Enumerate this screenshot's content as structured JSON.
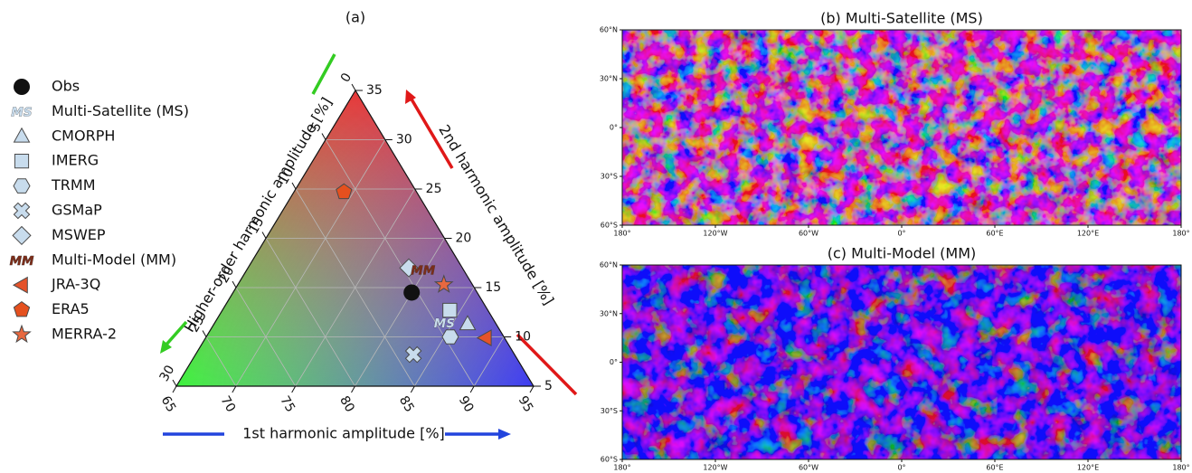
{
  "chart_data": [
    {
      "type": "ternary",
      "title": "(a)",
      "first_label": "1st harmonic amplitude [%]",
      "second_label": "2nd harmonic amplitude [%]",
      "higher_label": "Higher-order harmonic amplitude [%]",
      "first_lim": [
        65,
        95
      ],
      "second_lim": [
        5,
        35
      ],
      "higher_lim": [
        0,
        30
      ],
      "first_ticks": [
        65,
        70,
        75,
        80,
        85,
        90,
        95
      ],
      "second_ticks": [
        5,
        10,
        15,
        20,
        25,
        30,
        35
      ],
      "higher_ticks": [
        0,
        5,
        10,
        15,
        20,
        25,
        30
      ],
      "grid": true,
      "series": [
        {
          "name": "Obs",
          "marker": "o",
          "color": "#111111",
          "first": 80.0,
          "second": 14.5,
          "higher": 5.5
        },
        {
          "name": "Multi-Satellite (MS)",
          "marker": "MS",
          "color": "#c8dced",
          "first": 84.3,
          "second": 11.4,
          "higher": 4.3
        },
        {
          "name": "CMORPH",
          "marker": "^",
          "color": "#c8dced",
          "first": 86.3,
          "second": 11.3,
          "higher": 2.4
        },
        {
          "name": "IMERG",
          "marker": "s",
          "color": "#c8dced",
          "first": 84.1,
          "second": 12.7,
          "higher": 3.2
        },
        {
          "name": "TRMM",
          "marker": "h",
          "color": "#c8dced",
          "first": 85.5,
          "second": 10.0,
          "higher": 4.5
        },
        {
          "name": "GSMaP",
          "marker": "X",
          "color": "#c8dced",
          "first": 83.3,
          "second": 8.2,
          "higher": 8.5
        },
        {
          "name": "MSWEP",
          "marker": "D",
          "color": "#c8dced",
          "first": 78.5,
          "second": 17.0,
          "higher": 4.5
        },
        {
          "name": "Multi-Model (MM)",
          "marker": "MM",
          "color": "#7b2d1a",
          "first": 79.8,
          "second": 16.8,
          "higher": 3.4
        },
        {
          "name": "JRA-3Q",
          "marker": "<",
          "color": "#e5532a",
          "first": 88.5,
          "second": 9.9,
          "higher": 1.6
        },
        {
          "name": "ERA5",
          "marker": "p",
          "color": "#e5501e",
          "first": 69.2,
          "second": 24.7,
          "higher": 6.1
        },
        {
          "name": "MERRA-2",
          "marker": "*",
          "color": "#e8683f",
          "first": 82.3,
          "second": 15.3,
          "higher": 2.4
        }
      ]
    },
    {
      "type": "map",
      "title": "(b) Multi-Satellite (MS)",
      "xlim": [
        -180,
        180
      ],
      "ylim": [
        -60,
        60
      ],
      "xticks": [
        {
          "value": -180,
          "label": "180°"
        },
        {
          "value": -120,
          "label": "120°W"
        },
        {
          "value": -60,
          "label": "60°W"
        },
        {
          "value": 0,
          "label": "0°"
        },
        {
          "value": 60,
          "label": "60°E"
        },
        {
          "value": 120,
          "label": "120°E"
        },
        {
          "value": 180,
          "label": "180°"
        }
      ],
      "yticks": [
        {
          "value": 60,
          "label": "60°N"
        },
        {
          "value": 30,
          "label": "30°N"
        },
        {
          "value": 0,
          "label": "0°"
        },
        {
          "value": -30,
          "label": "30°S"
        },
        {
          "value": -60,
          "label": "60°S"
        }
      ]
    },
    {
      "type": "map",
      "title": "(c) Multi-Model (MM)",
      "xlim": [
        -180,
        180
      ],
      "ylim": [
        -60,
        60
      ],
      "xticks": [
        {
          "value": -180,
          "label": "180°"
        },
        {
          "value": -120,
          "label": "120°W"
        },
        {
          "value": -60,
          "label": "60°W"
        },
        {
          "value": 0,
          "label": "0°"
        },
        {
          "value": 60,
          "label": "60°E"
        },
        {
          "value": 120,
          "label": "120°E"
        },
        {
          "value": 180,
          "label": "180°"
        }
      ],
      "yticks": [
        {
          "value": 60,
          "label": "60°N"
        },
        {
          "value": 30,
          "label": "30°N"
        },
        {
          "value": 0,
          "label": "0°"
        },
        {
          "value": -30,
          "label": "30°S"
        },
        {
          "value": -60,
          "label": "60°S"
        }
      ]
    }
  ]
}
